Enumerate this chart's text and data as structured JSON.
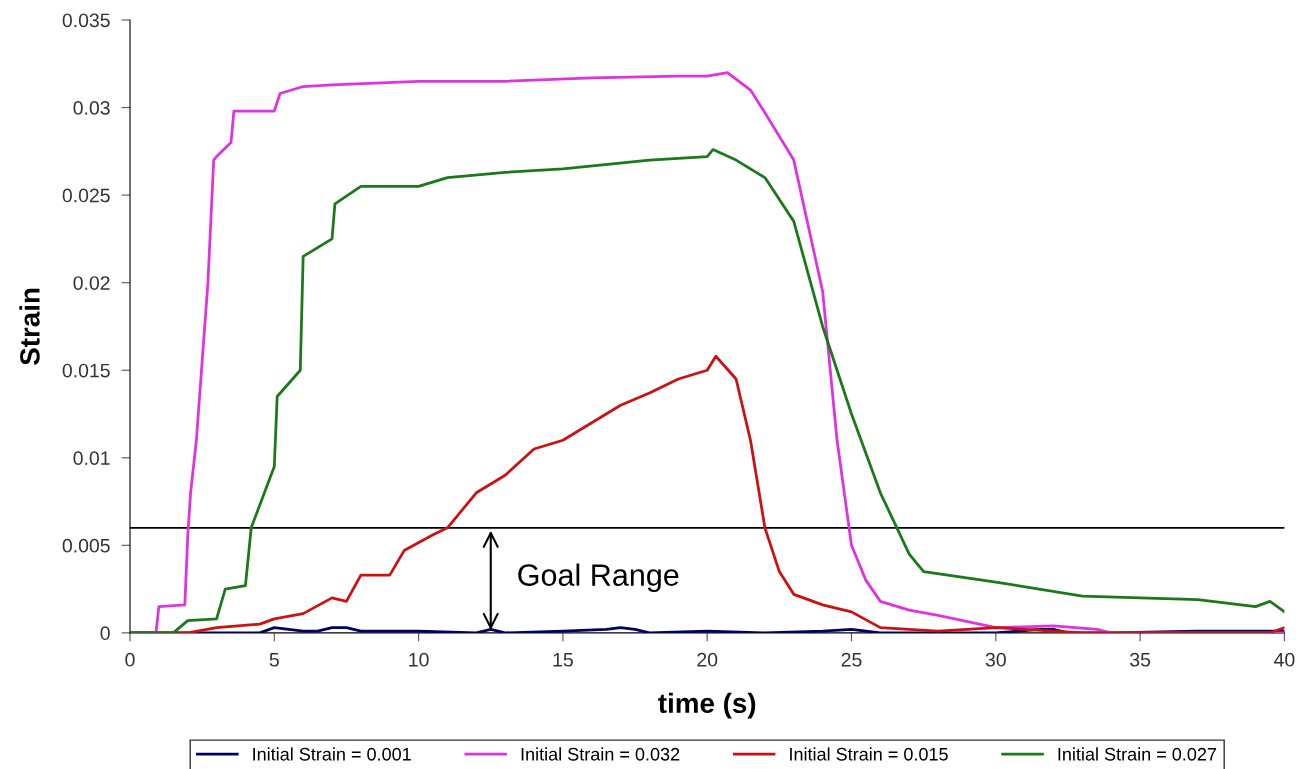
{
  "chart_data": {
    "type": "line",
    "xlabel": "time (s)",
    "ylabel": "Strain",
    "xlim": [
      0,
      40
    ],
    "xticks": [
      0,
      5,
      10,
      15,
      20,
      25,
      30,
      35,
      40
    ],
    "ylim": [
      0,
      0.035
    ],
    "yticks": [
      0,
      0.005,
      0.01,
      0.015,
      0.02,
      0.025,
      0.03,
      0.035
    ],
    "grid": false,
    "legend": "bottom",
    "marker": "none",
    "line_style": "solid",
    "ref_lines": [
      {
        "axis": "y",
        "value": 0.006,
        "color": "#000000"
      }
    ],
    "annotations": [
      "Goal Range"
    ],
    "series": [
      {
        "name": "Initial Strain = 0.001",
        "color": "#000066",
        "x": [
          0,
          4.5,
          5,
          5.5,
          6,
          6.5,
          7,
          7.5,
          8,
          10,
          12,
          12.5,
          13,
          15,
          16.5,
          17,
          17.5,
          18,
          20,
          22,
          24,
          25,
          26,
          30,
          31.5,
          32,
          32.5,
          34,
          37,
          40
        ],
        "values": [
          0,
          0,
          0.0003,
          0.0002,
          0.0001,
          0.0001,
          0.0003,
          0.0003,
          0.0001,
          0.0001,
          0,
          0.0002,
          0,
          0.0001,
          0.0002,
          0.0003,
          0.0002,
          0,
          0.0001,
          0,
          0.0001,
          0.0002,
          0,
          0,
          0.0002,
          0.0002,
          0,
          0,
          0.0001,
          0.0001
        ]
      },
      {
        "name": "Initial Strain = 0.032",
        "color": "#e033e0",
        "x": [
          0,
          0.9,
          1,
          1.9,
          2,
          2.1,
          2.3,
          2.5,
          2.7,
          2.9,
          3,
          3.5,
          3.6,
          5,
          5.2,
          6,
          7,
          10,
          13,
          16,
          19,
          20,
          20.7,
          21.5,
          22,
          23,
          24,
          24.5,
          25,
          25.5,
          26,
          27,
          28,
          30,
          32,
          33.5,
          34,
          40
        ],
        "values": [
          0,
          0,
          0.0015,
          0.0016,
          0.0055,
          0.008,
          0.011,
          0.0155,
          0.02,
          0.027,
          0.0272,
          0.028,
          0.0298,
          0.0298,
          0.0308,
          0.0312,
          0.0313,
          0.0315,
          0.0315,
          0.0317,
          0.0318,
          0.0318,
          0.032,
          0.031,
          0.0297,
          0.027,
          0.0195,
          0.011,
          0.005,
          0.003,
          0.0018,
          0.0013,
          0.001,
          0.0003,
          0.0004,
          0.0002,
          0,
          0
        ]
      },
      {
        "name": "Initial Strain = 0.015",
        "color": "#cc1111",
        "x": [
          0,
          2,
          3,
          4.5,
          5,
          6,
          7,
          7.5,
          8,
          9,
          9.5,
          10.5,
          11,
          12,
          13,
          14,
          15,
          16,
          17,
          18,
          19,
          20,
          20.3,
          21,
          21.5,
          22,
          22.5,
          23,
          24,
          25,
          26,
          28,
          30,
          33,
          39.5,
          40
        ],
        "values": [
          0,
          0,
          0.0003,
          0.0005,
          0.0008,
          0.0011,
          0.002,
          0.0018,
          0.0033,
          0.0033,
          0.0047,
          0.0056,
          0.006,
          0.008,
          0.009,
          0.0105,
          0.011,
          0.012,
          0.013,
          0.0137,
          0.0145,
          0.015,
          0.0158,
          0.0145,
          0.011,
          0.006,
          0.0035,
          0.0022,
          0.0016,
          0.0012,
          0.0003,
          0.0001,
          0.0003,
          0,
          0,
          0.0003
        ]
      },
      {
        "name": "Initial Strain = 0.027",
        "color": "#1a7a1a",
        "x": [
          0,
          1.5,
          2,
          3,
          3.3,
          4,
          4.2,
          5,
          5.1,
          5.9,
          6,
          7,
          7.1,
          8,
          10,
          11,
          13,
          15,
          18,
          20,
          20.2,
          21,
          22,
          23,
          24,
          25,
          26,
          27,
          27.5,
          30,
          33,
          37,
          39,
          39.5,
          40
        ],
        "values": [
          0,
          0,
          0.0007,
          0.0008,
          0.0025,
          0.0027,
          0.006,
          0.0095,
          0.0135,
          0.015,
          0.0215,
          0.0225,
          0.0245,
          0.0255,
          0.0255,
          0.026,
          0.0263,
          0.0265,
          0.027,
          0.0272,
          0.0276,
          0.027,
          0.026,
          0.0235,
          0.0175,
          0.0125,
          0.008,
          0.0045,
          0.0035,
          0.0029,
          0.0021,
          0.0019,
          0.0015,
          0.0018,
          0.0012
        ]
      }
    ]
  }
}
